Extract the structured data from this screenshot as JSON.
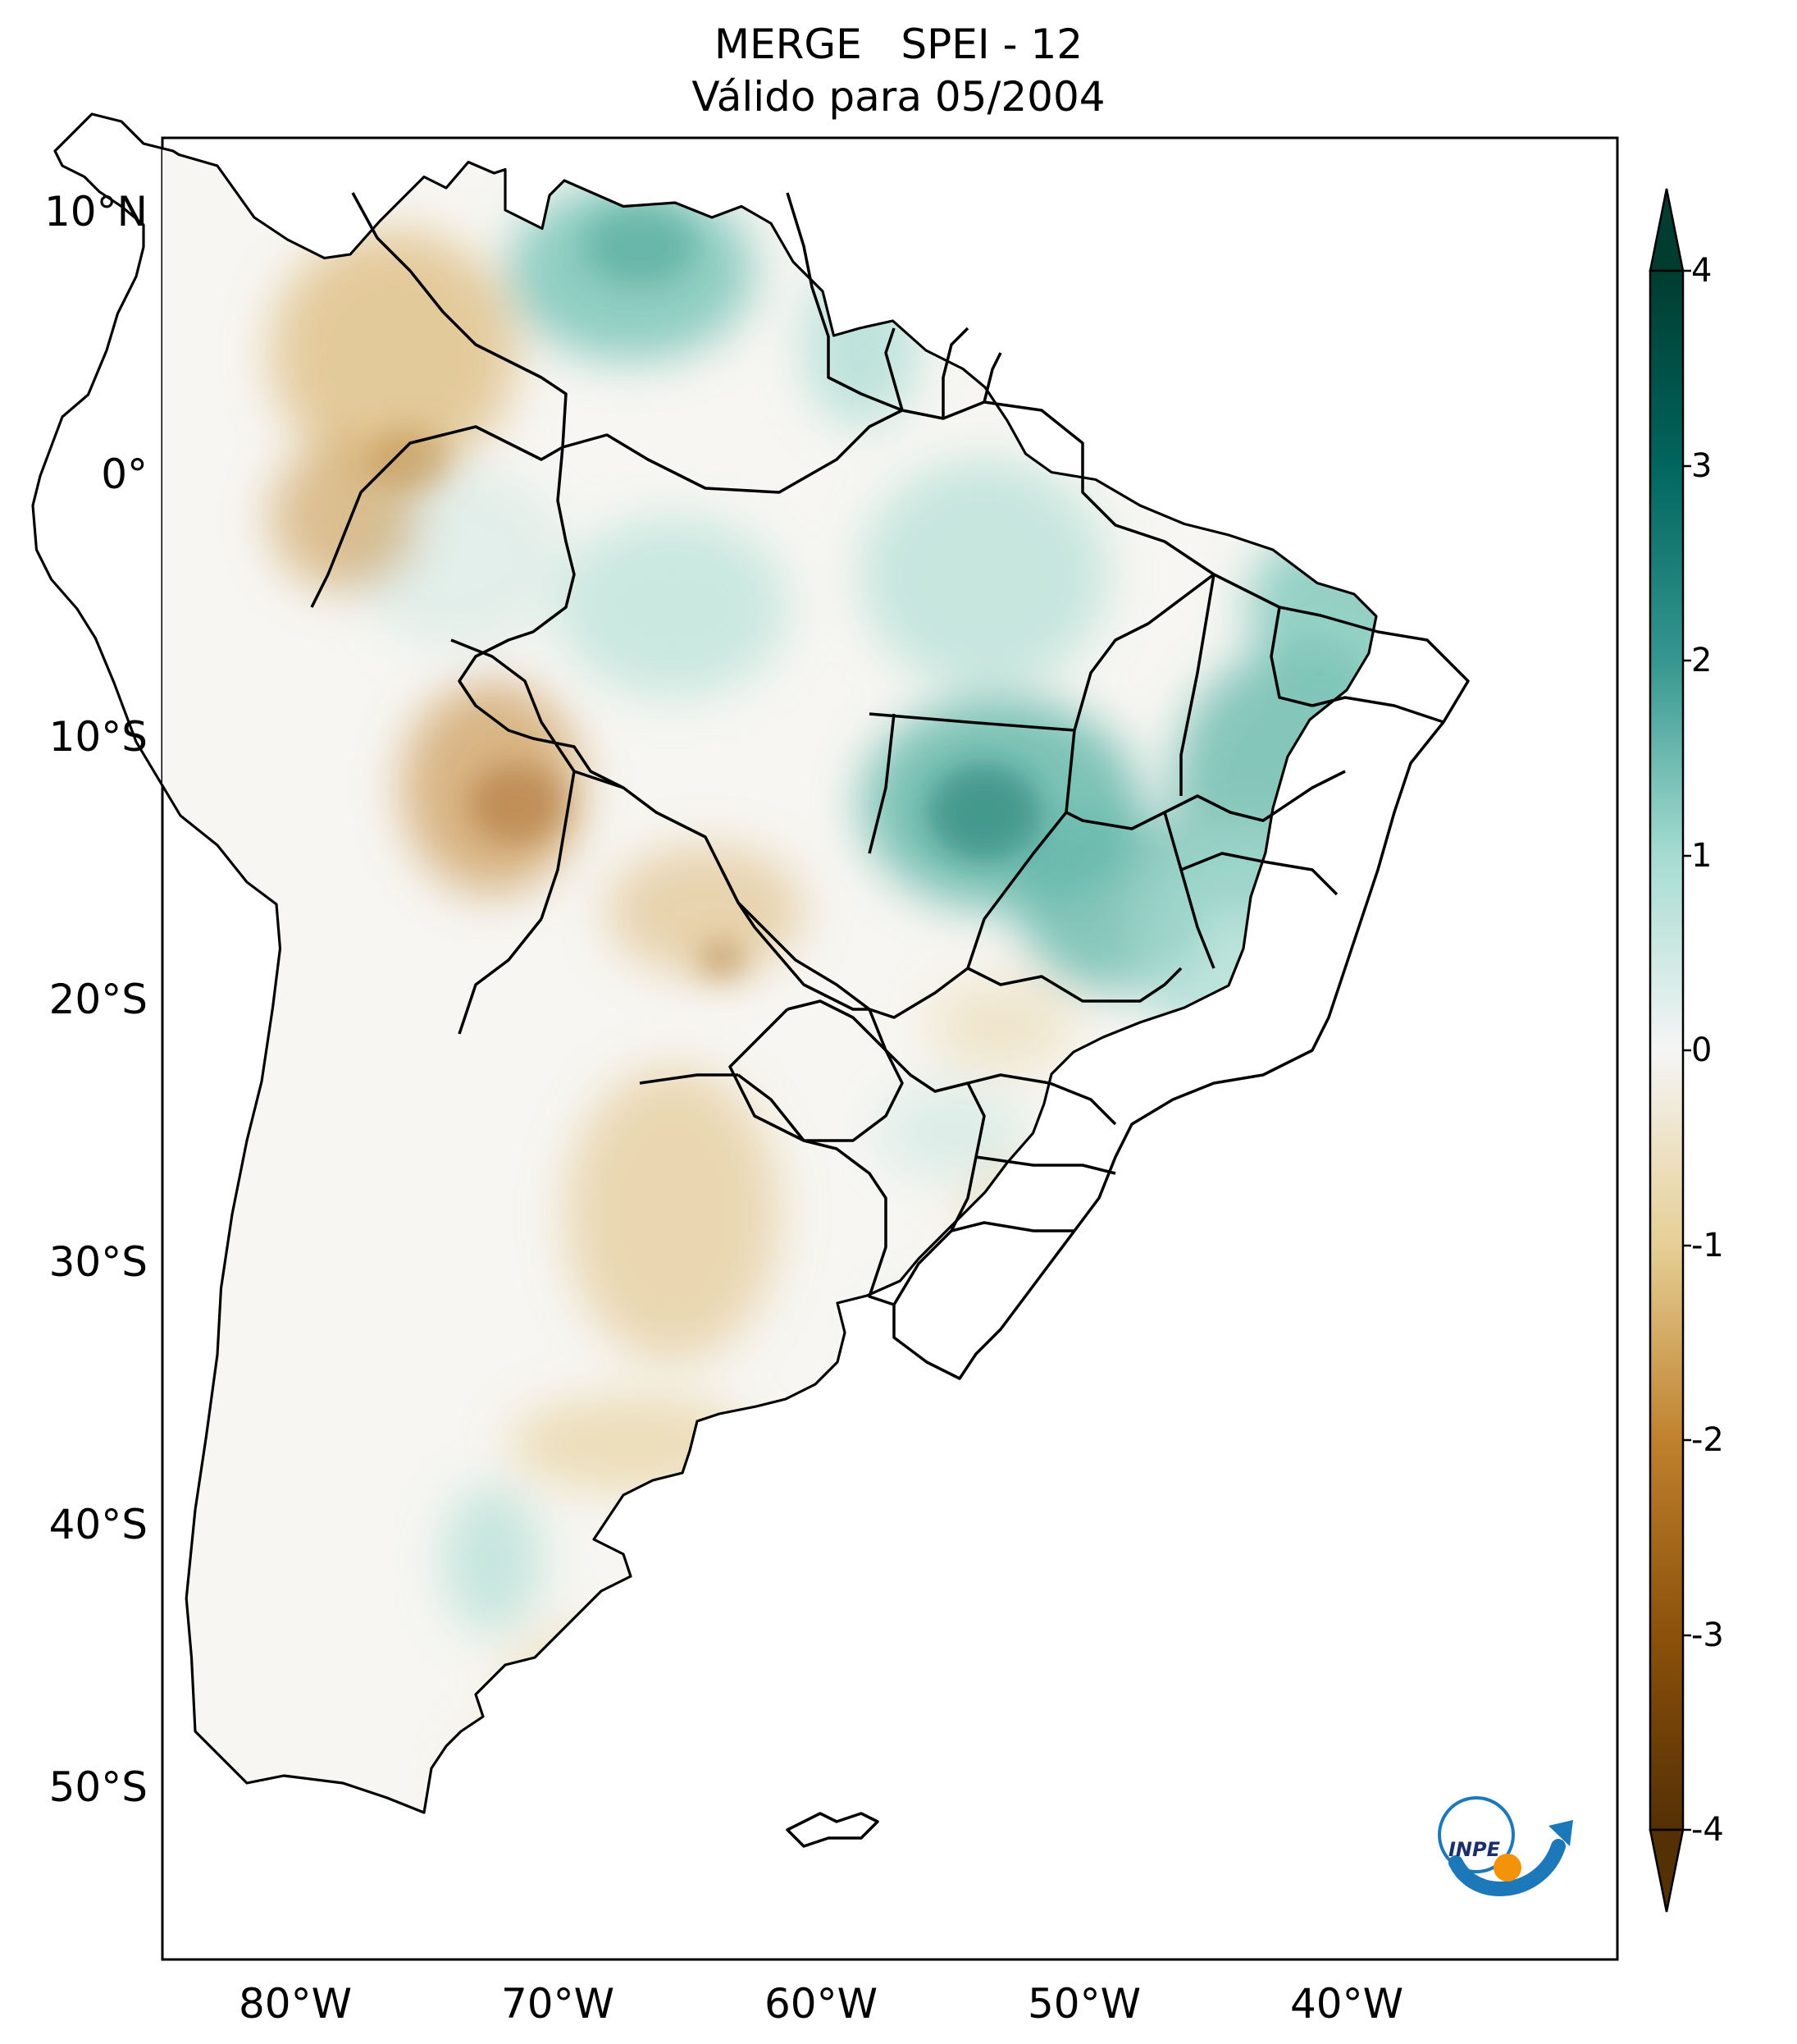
{
  "title": {
    "line1": "MERGE   SPEI - 12",
    "line2": "Válido para 05/2004"
  },
  "lat_labels": [
    "10°N",
    "0°",
    "10°S",
    "20°S",
    "30°S",
    "40°S",
    "50°S"
  ],
  "lon_labels": [
    "80°W",
    "70°W",
    "60°W",
    "50°W",
    "40°W"
  ],
  "colorbar": {
    "ticks": [
      "4",
      "3",
      "2",
      "1",
      "0",
      "-1",
      "-2",
      "-3",
      "-4"
    ],
    "min": -4,
    "max": 4,
    "extend": "both",
    "colors": {
      "-4": "#543005",
      "-3": "#8c510a",
      "-2": "#bf812d",
      "-1": "#e6cf95",
      "0": "#f5f5f5",
      "1": "#a5dcd1",
      "2": "#35978f",
      "3": "#01665e",
      "4": "#003c30"
    }
  },
  "logo": {
    "text": "INPE"
  }
}
